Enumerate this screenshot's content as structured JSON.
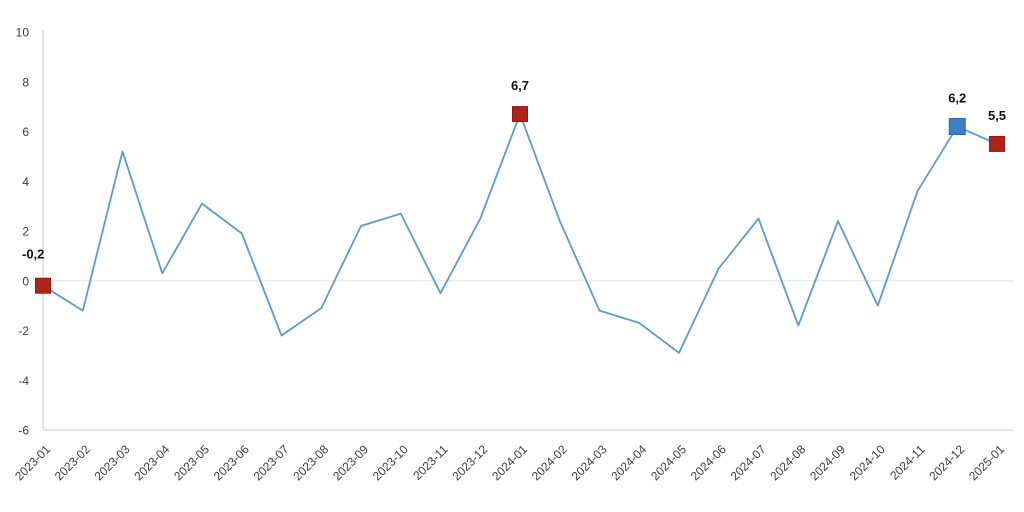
{
  "chart_data": {
    "type": "line",
    "title": "",
    "xlabel": "",
    "ylabel": "",
    "legend_position": "none",
    "grid": "horizontal gridline at 0 only",
    "ylim": [
      -6,
      10
    ],
    "y_ticks": [
      "10",
      "8",
      "6",
      "4",
      "2",
      "0",
      "-2",
      "-4",
      "-6"
    ],
    "x_tick_rotation_deg": 45,
    "decimal_separator": ",",
    "categories": [
      "2023-01",
      "2023-02",
      "2023-03",
      "2023-04",
      "2023-05",
      "2023-06",
      "2023-07",
      "2023-08",
      "2023-09",
      "2023-10",
      "2023-11",
      "2023-12",
      "2024-01",
      "2024-02",
      "2024-03",
      "2024-04",
      "2024-05",
      "2024-06",
      "2024-07",
      "2024-08",
      "2024-09",
      "2024-10",
      "2024-11",
      "2024-12",
      "2025-01"
    ],
    "values": [
      -0.2,
      -1.2,
      5.2,
      0.3,
      3.1,
      1.9,
      -2.2,
      -1.1,
      2.2,
      2.7,
      -0.5,
      2.5,
      6.7,
      2.4,
      -1.2,
      -1.7,
      -2.9,
      0.5,
      2.5,
      -1.8,
      2.4,
      -1.0,
      3.6,
      6.2,
      5.5
    ],
    "annotations": [
      {
        "category": "2023-01",
        "value": -0.2,
        "label": "-0,2",
        "marker": "filled-square",
        "marker_color": "#b02318",
        "label_position": "above-left"
      },
      {
        "category": "2024-01",
        "value": 6.7,
        "label": "6,7",
        "marker": "filled-square",
        "marker_color": "#b02318",
        "label_position": "above"
      },
      {
        "category": "2024-12",
        "value": 6.2,
        "label": "6,2",
        "marker": "filled-square",
        "marker_color": "#3c7fc0",
        "label_position": "above"
      },
      {
        "category": "2025-01",
        "value": 5.5,
        "label": "5,5",
        "marker": "filled-square",
        "marker_color": "#b02318",
        "label_position": "above"
      }
    ],
    "colors": {
      "line": "#5b9bd5",
      "marker_red": "#b02318",
      "marker_red_border": "#931712",
      "marker_blue": "#3c7fc0",
      "marker_blue_border": "#2a6aa5",
      "axis_line": "#d6d6d6",
      "zero_gridline": "#e8e8e8",
      "tick_text": "#3c3c3c",
      "annotation_text": "#111111",
      "background": "#ffffff"
    }
  }
}
